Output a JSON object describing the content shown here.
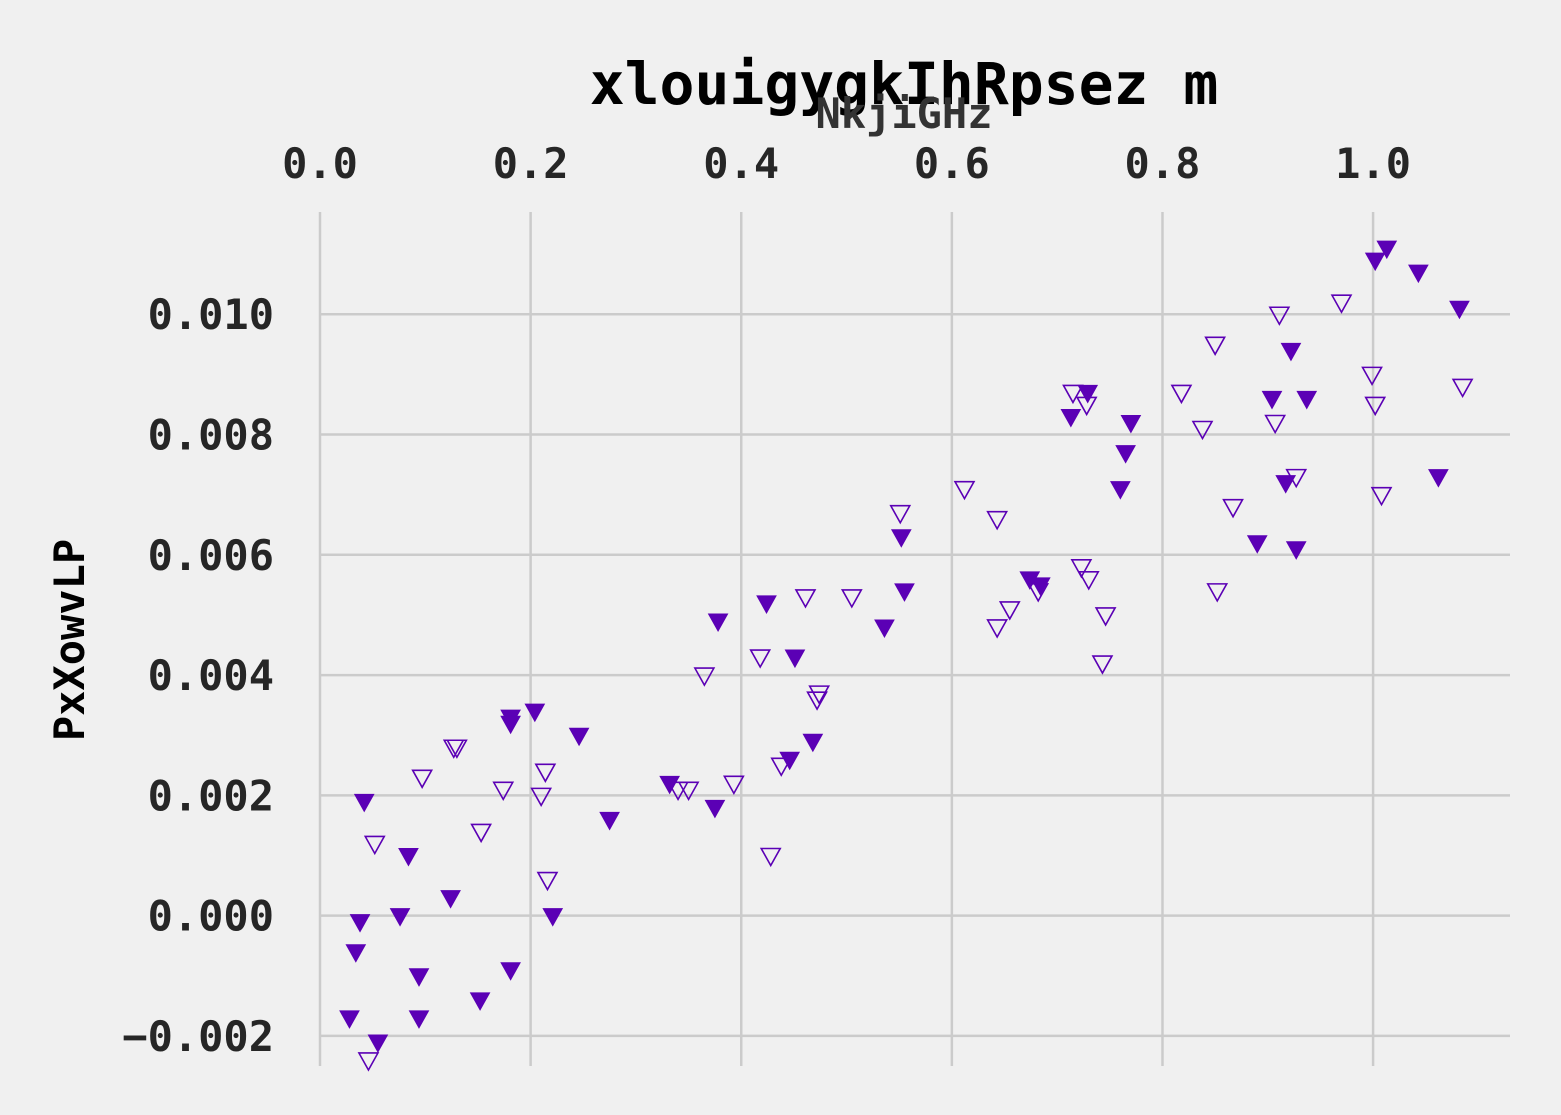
{
  "chart_data": {
    "type": "scatter",
    "title": "xlouigygkIhRpsez m",
    "xlabel": "NkjiGHz",
    "ylabel": "PxXowvLP",
    "xlim": [
      0.0,
      1.13
    ],
    "ylim": [
      -0.0025,
      0.0117
    ],
    "x_ticks": [
      "0.0",
      "0.2",
      "0.4",
      "0.6",
      "0.8",
      "1.0"
    ],
    "x_tick_values": [
      0.0,
      0.2,
      0.4,
      0.6,
      0.8,
      1.0
    ],
    "y_ticks": [
      "−0.002",
      "0.000",
      "0.002",
      "0.004",
      "0.006",
      "0.008",
      "0.010"
    ],
    "y_tick_values": [
      -0.002,
      0.0,
      0.002,
      0.004,
      0.006,
      0.008,
      0.01
    ],
    "x_axis_position": "top",
    "grid": true,
    "colors": {
      "background": "#f0f0f0",
      "marker": "#5b00b5",
      "grid": "#cbcbcb",
      "text": "#262626"
    },
    "series": [
      {
        "marker": "filled-triangle-down",
        "points": [
          [
            0.042,
            0.0019
          ],
          [
            0.038,
            -0.0001
          ],
          [
            0.034,
            -0.0006
          ],
          [
            0.028,
            -0.0017
          ],
          [
            0.055,
            -0.0021
          ],
          [
            0.076,
            0.0
          ],
          [
            0.084,
            0.001
          ],
          [
            0.094,
            -0.001
          ],
          [
            0.094,
            -0.0017
          ],
          [
            0.124,
            0.0003
          ],
          [
            0.152,
            -0.0014
          ],
          [
            0.181,
            0.0033
          ],
          [
            0.181,
            0.0032
          ],
          [
            0.181,
            -0.0009
          ],
          [
            0.204,
            0.0034
          ],
          [
            0.221,
            0.0
          ],
          [
            0.246,
            0.003
          ],
          [
            0.275,
            0.0016
          ],
          [
            0.332,
            0.0022
          ],
          [
            0.375,
            0.0018
          ],
          [
            0.378,
            0.0049
          ],
          [
            0.424,
            0.0052
          ],
          [
            0.446,
            0.0026
          ],
          [
            0.451,
            0.0043
          ],
          [
            0.468,
            0.0029
          ],
          [
            0.536,
            0.0048
          ],
          [
            0.552,
            0.0063
          ],
          [
            0.555,
            0.0054
          ],
          [
            0.674,
            0.0056
          ],
          [
            0.684,
            0.0055
          ],
          [
            0.713,
            0.0083
          ],
          [
            0.729,
            0.0087
          ],
          [
            0.76,
            0.0071
          ],
          [
            0.765,
            0.0077
          ],
          [
            0.77,
            0.0082
          ],
          [
            0.89,
            0.0062
          ],
          [
            0.904,
            0.0086
          ],
          [
            0.917,
            0.0072
          ],
          [
            0.922,
            0.0094
          ],
          [
            0.927,
            0.0061
          ],
          [
            0.937,
            0.0086
          ],
          [
            1.002,
            0.0109
          ],
          [
            1.013,
            0.0111
          ],
          [
            1.043,
            0.0107
          ],
          [
            1.062,
            0.0073
          ],
          [
            1.082,
            0.0101
          ]
        ]
      },
      {
        "marker": "hollow-triangle-down",
        "points": [
          [
            0.046,
            -0.0024
          ],
          [
            0.052,
            0.0012
          ],
          [
            0.097,
            0.0023
          ],
          [
            0.127,
            0.0028
          ],
          [
            0.13,
            0.0028
          ],
          [
            0.153,
            0.0014
          ],
          [
            0.174,
            0.0021
          ],
          [
            0.21,
            0.002
          ],
          [
            0.214,
            0.0024
          ],
          [
            0.216,
            0.0006
          ],
          [
            0.34,
            0.0021
          ],
          [
            0.35,
            0.0021
          ],
          [
            0.365,
            0.004
          ],
          [
            0.393,
            0.0022
          ],
          [
            0.418,
            0.0043
          ],
          [
            0.428,
            0.001
          ],
          [
            0.438,
            0.0025
          ],
          [
            0.461,
            0.0053
          ],
          [
            0.472,
            0.0036
          ],
          [
            0.474,
            0.0037
          ],
          [
            0.505,
            0.0053
          ],
          [
            0.551,
            0.0067
          ],
          [
            0.612,
            0.0071
          ],
          [
            0.643,
            0.0048
          ],
          [
            0.643,
            0.0066
          ],
          [
            0.655,
            0.0051
          ],
          [
            0.682,
            0.0054
          ],
          [
            0.715,
            0.0087
          ],
          [
            0.723,
            0.0058
          ],
          [
            0.728,
            0.0085
          ],
          [
            0.73,
            0.0056
          ],
          [
            0.743,
            0.0042
          ],
          [
            0.746,
            0.005
          ],
          [
            0.818,
            0.0087
          ],
          [
            0.838,
            0.0081
          ],
          [
            0.85,
            0.0095
          ],
          [
            0.852,
            0.0054
          ],
          [
            0.867,
            0.0068
          ],
          [
            0.907,
            0.0082
          ],
          [
            0.911,
            0.01
          ],
          [
            0.927,
            0.0073
          ],
          [
            0.97,
            0.0102
          ],
          [
            0.999,
            0.009
          ],
          [
            1.002,
            0.0085
          ],
          [
            1.008,
            0.007
          ],
          [
            1.085,
            0.0088
          ]
        ]
      }
    ]
  }
}
